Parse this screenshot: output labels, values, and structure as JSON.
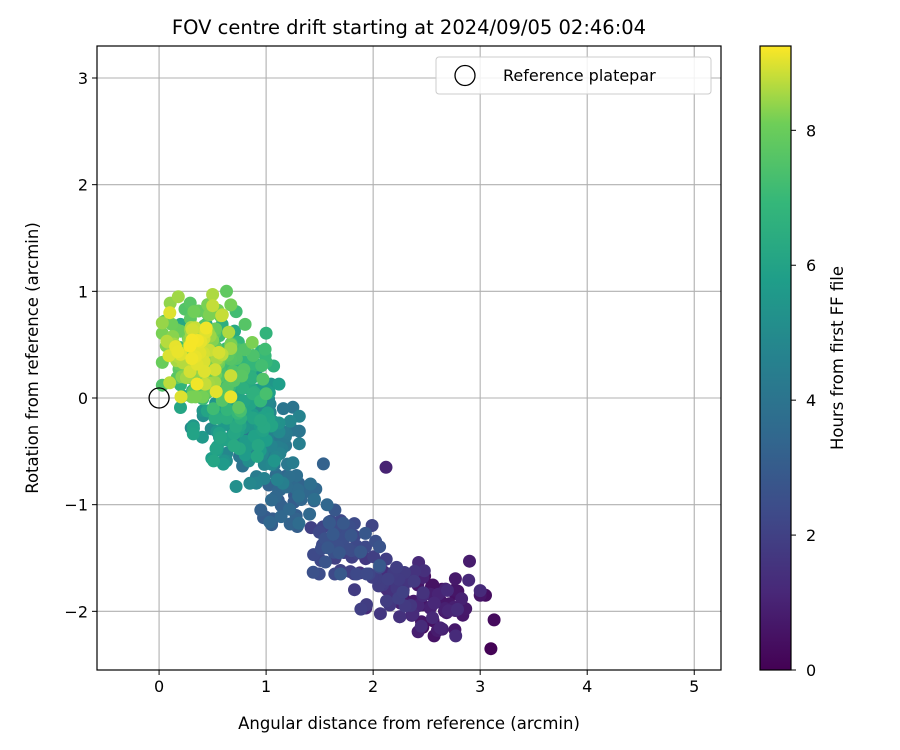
{
  "chart_data": {
    "type": "scatter",
    "title": "FOV centre drift starting at 2024/09/05 02:46:04",
    "xlabel": "Angular distance from reference (arcmin)",
    "ylabel": "Rotation from reference (arcmin)",
    "xlim": [
      -0.58,
      5.25
    ],
    "ylim": [
      -2.55,
      3.3
    ],
    "xticks": [
      0,
      1,
      2,
      3,
      4,
      5
    ],
    "yticks": [
      -2,
      -1,
      0,
      1,
      2,
      3
    ],
    "grid": true,
    "colormap": "viridis",
    "colorbar": {
      "label": "Hours from first FF file",
      "range": [
        0,
        9.25
      ],
      "ticks": [
        0,
        2,
        4,
        6,
        8
      ]
    },
    "legend": {
      "placement": "top-right",
      "entries": [
        {
          "label": "Reference platepar",
          "marker": "open-circle"
        }
      ]
    },
    "reference_point": {
      "x": 0,
      "y": 0
    },
    "clusters": [
      {
        "cx": 0.35,
        "cy": 0.45,
        "sx": 0.16,
        "sy": 0.22,
        "n": 150,
        "hmin": 7.5,
        "hmax": 9.2
      },
      {
        "cx": 0.6,
        "cy": 0.25,
        "sx": 0.2,
        "sy": 0.22,
        "n": 120,
        "hmin": 6.0,
        "hmax": 7.8
      },
      {
        "cx": 0.72,
        "cy": -0.15,
        "sx": 0.2,
        "sy": 0.22,
        "n": 150,
        "hmin": 4.8,
        "hmax": 6.3
      },
      {
        "cx": 0.95,
        "cy": -0.4,
        "sx": 0.18,
        "sy": 0.2,
        "n": 80,
        "hmin": 3.8,
        "hmax": 4.9
      },
      {
        "cx": 1.25,
        "cy": -0.95,
        "sx": 0.16,
        "sy": 0.18,
        "n": 45,
        "hmin": 2.9,
        "hmax": 3.8
      },
      {
        "cx": 1.7,
        "cy": -1.35,
        "sx": 0.18,
        "sy": 0.15,
        "n": 60,
        "hmin": 1.9,
        "hmax": 2.9
      },
      {
        "cx": 2.15,
        "cy": -1.75,
        "sx": 0.18,
        "sy": 0.15,
        "n": 50,
        "hmin": 1.2,
        "hmax": 2.0
      },
      {
        "cx": 2.6,
        "cy": -1.95,
        "sx": 0.2,
        "sy": 0.14,
        "n": 55,
        "hmin": 0.4,
        "hmax": 1.3
      }
    ],
    "points": [
      {
        "x": 0.1,
        "y": 0.8,
        "h": 9.0
      },
      {
        "x": 0.18,
        "y": 0.95,
        "h": 8.5
      },
      {
        "x": 0.5,
        "y": 0.97,
        "h": 8.6
      },
      {
        "x": 0.63,
        "y": 1.0,
        "h": 7.8
      },
      {
        "x": 0.72,
        "y": 0.81,
        "h": 7.2
      },
      {
        "x": 0.05,
        "y": 0.72,
        "h": 7.5
      },
      {
        "x": 0.87,
        "y": 0.52,
        "h": 8.2
      },
      {
        "x": 1.07,
        "y": 0.3,
        "h": 6.6
      },
      {
        "x": 1.12,
        "y": 0.13,
        "h": 5.8
      },
      {
        "x": 0.03,
        "y": 0.12,
        "h": 7.5
      },
      {
        "x": 0.43,
        "y": 0.13,
        "h": 8.8
      },
      {
        "x": 0.22,
        "y": 0.02,
        "h": 6.0
      },
      {
        "x": 0.72,
        "y": -0.83,
        "h": 5.2
      },
      {
        "x": 2.12,
        "y": -0.65,
        "h": 1.0
      },
      {
        "x": 0.95,
        "y": -1.05,
        "h": 3.2
      },
      {
        "x": 1.4,
        "y": -0.86,
        "h": 3.0
      },
      {
        "x": 1.55,
        "y": -1.32,
        "h": 2.6
      },
      {
        "x": 2.9,
        "y": -1.53,
        "h": 0.8
      },
      {
        "x": 3.0,
        "y": -1.85,
        "h": 0.6
      },
      {
        "x": 3.13,
        "y": -2.08,
        "h": 0.3
      },
      {
        "x": 3.1,
        "y": -2.35,
        "h": 0.05
      },
      {
        "x": 3.05,
        "y": -1.85,
        "h": 0.4
      },
      {
        "x": 2.25,
        "y": -2.05,
        "h": 1.1
      },
      {
        "x": 2.6,
        "y": -2.18,
        "h": 0.8
      },
      {
        "x": 2.45,
        "y": -2.14,
        "h": 1.3
      },
      {
        "x": 1.2,
        "y": -0.62,
        "h": 4.2
      },
      {
        "x": 1.25,
        "y": -0.3,
        "h": 4.0
      },
      {
        "x": 0.6,
        "y": -0.62,
        "h": 5.6
      },
      {
        "x": 0.3,
        "y": -0.28,
        "h": 5.0
      }
    ]
  }
}
